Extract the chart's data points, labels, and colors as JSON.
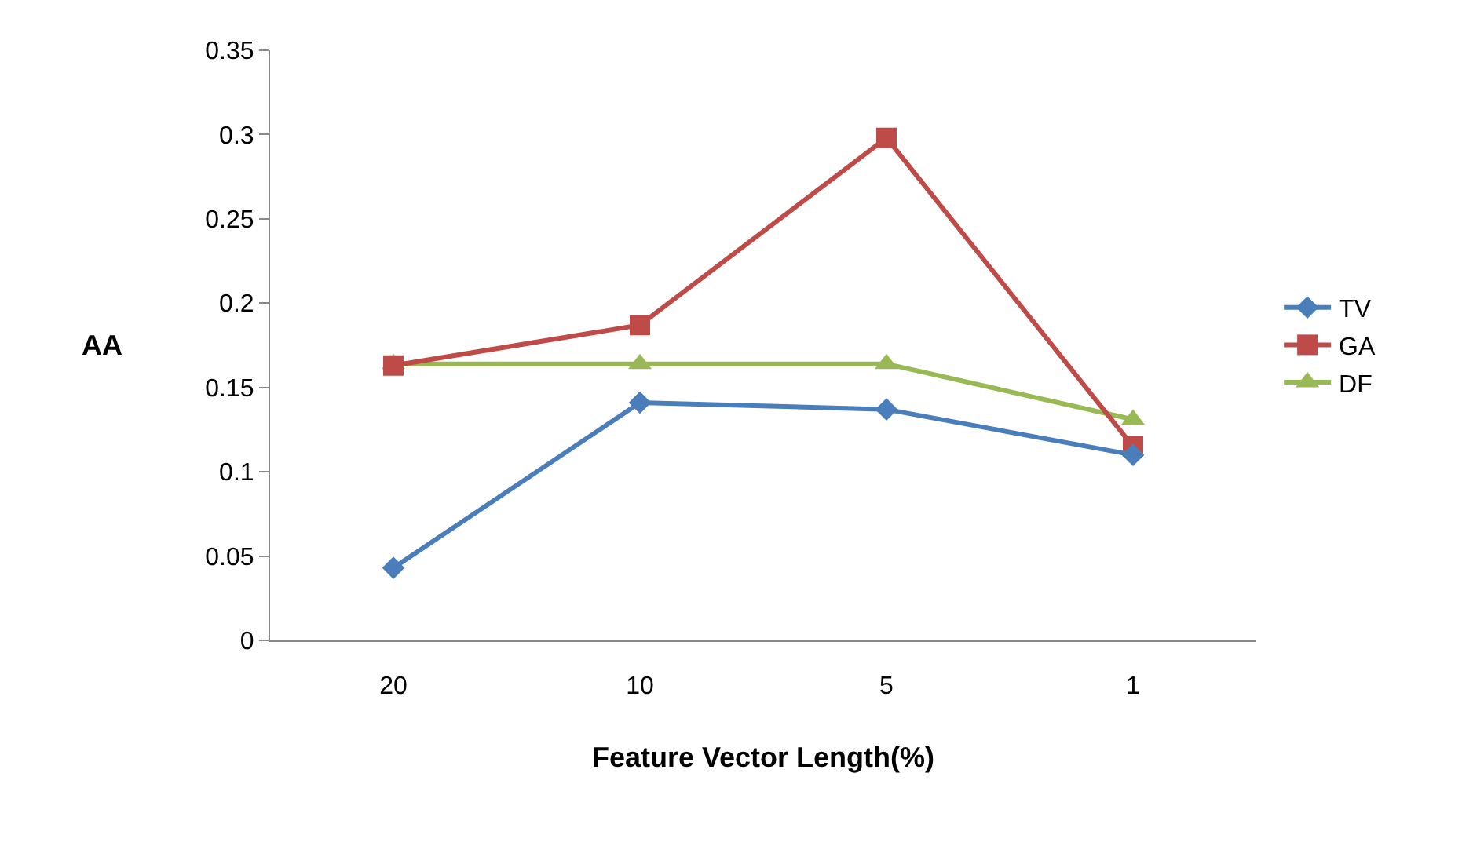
{
  "chart_data": {
    "type": "line",
    "xlabel": "Feature Vector Length(%)",
    "ylabel": "AA",
    "categories": [
      "20",
      "10",
      "5",
      "1"
    ],
    "series": [
      {
        "name": "TV",
        "color": "#4a7ebb",
        "marker": "diamond",
        "values": [
          0.043,
          0.141,
          0.137,
          0.11
        ]
      },
      {
        "name": "GA",
        "color": "#be4b48",
        "marker": "square",
        "values": [
          0.163,
          0.187,
          0.298,
          0.115
        ]
      },
      {
        "name": "DF",
        "color": "#98b954",
        "marker": "triangle",
        "values": [
          0.164,
          0.164,
          0.164,
          0.131
        ]
      }
    ],
    "ylim": [
      0,
      0.35
    ],
    "yticks": [
      0,
      0.05,
      0.1,
      0.15,
      0.2,
      0.25,
      0.3,
      0.35
    ],
    "grid": false,
    "legend": "right",
    "line_style": "solid"
  }
}
